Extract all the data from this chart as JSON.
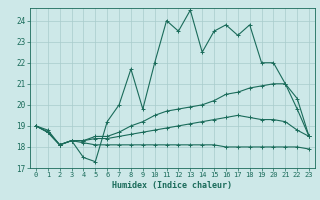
{
  "background_color": "#cde8e8",
  "grid_color": "#a8cccc",
  "line_color": "#1a6b5a",
  "xlabel": "Humidex (Indice chaleur)",
  "xlim": [
    -0.5,
    23.5
  ],
  "ylim": [
    17.0,
    24.6
  ],
  "yticks": [
    17,
    18,
    19,
    20,
    21,
    22,
    23,
    24
  ],
  "xticks": [
    0,
    1,
    2,
    3,
    4,
    5,
    6,
    7,
    8,
    9,
    10,
    11,
    12,
    13,
    14,
    15,
    16,
    17,
    18,
    19,
    20,
    21,
    22,
    23
  ],
  "series1_x": [
    0,
    1,
    2,
    3,
    4,
    5,
    6,
    7,
    8,
    9,
    10,
    11,
    12,
    13,
    14,
    15,
    16,
    17,
    18,
    19,
    20,
    21,
    22,
    23
  ],
  "series1_y": [
    19.0,
    18.8,
    18.1,
    18.3,
    17.5,
    17.3,
    19.2,
    20.0,
    21.7,
    19.8,
    22.0,
    24.0,
    23.5,
    24.5,
    22.5,
    23.5,
    23.8,
    23.3,
    23.8,
    22.0,
    22.0,
    21.0,
    19.8,
    18.5
  ],
  "series2_x": [
    0,
    1,
    2,
    3,
    4,
    5,
    6,
    7,
    8,
    9,
    10,
    11,
    12,
    13,
    14,
    15,
    16,
    17,
    18,
    19,
    20,
    21,
    22,
    23
  ],
  "series2_y": [
    19.0,
    18.7,
    18.1,
    18.3,
    18.3,
    18.5,
    18.5,
    18.7,
    19.0,
    19.2,
    19.5,
    19.7,
    19.8,
    19.9,
    20.0,
    20.2,
    20.5,
    20.6,
    20.8,
    20.9,
    21.0,
    21.0,
    20.3,
    18.5
  ],
  "series3_x": [
    0,
    1,
    2,
    3,
    4,
    5,
    6,
    7,
    8,
    9,
    10,
    11,
    12,
    13,
    14,
    15,
    16,
    17,
    18,
    19,
    20,
    21,
    22,
    23
  ],
  "series3_y": [
    19.0,
    18.7,
    18.1,
    18.3,
    18.3,
    18.4,
    18.4,
    18.5,
    18.6,
    18.7,
    18.8,
    18.9,
    19.0,
    19.1,
    19.2,
    19.3,
    19.4,
    19.5,
    19.4,
    19.3,
    19.3,
    19.2,
    18.8,
    18.5
  ],
  "series4_x": [
    0,
    1,
    2,
    3,
    4,
    5,
    6,
    7,
    8,
    9,
    10,
    11,
    12,
    13,
    14,
    15,
    16,
    17,
    18,
    19,
    20,
    21,
    22,
    23
  ],
  "series4_y": [
    19.0,
    18.7,
    18.1,
    18.3,
    18.2,
    18.1,
    18.1,
    18.1,
    18.1,
    18.1,
    18.1,
    18.1,
    18.1,
    18.1,
    18.1,
    18.1,
    18.0,
    18.0,
    18.0,
    18.0,
    18.0,
    18.0,
    18.0,
    17.9
  ]
}
